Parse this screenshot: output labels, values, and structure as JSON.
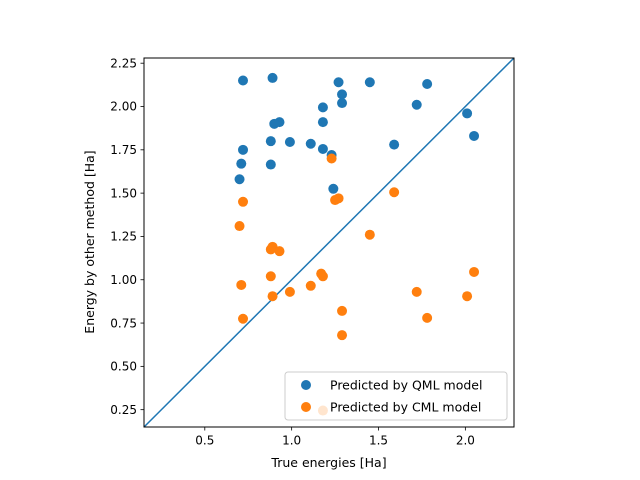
{
  "chart_data": {
    "type": "scatter",
    "xlabel": "True energies [Ha]",
    "ylabel": "Energy by other method [Ha]",
    "xlim": [
      0.15,
      2.28
    ],
    "ylim": [
      0.15,
      2.28
    ],
    "x_ticks": [
      "0.5",
      "1.0",
      "1.5",
      "2.0"
    ],
    "x_tick_values": [
      0.5,
      1.0,
      1.5,
      2.0
    ],
    "y_ticks": [
      "0.25",
      "0.50",
      "0.75",
      "1.00",
      "1.25",
      "1.50",
      "1.75",
      "2.00",
      "2.25"
    ],
    "y_tick_values": [
      0.25,
      0.5,
      0.75,
      1.0,
      1.25,
      1.5,
      1.75,
      2.0,
      2.25
    ],
    "grid": false,
    "legend_position": "lower-right",
    "reference_line": {
      "type": "identity",
      "color": "#1f77b4"
    },
    "series": [
      {
        "name": "Predicted by QML model",
        "color": "#1f77b4",
        "points": [
          [
            0.72,
            2.15
          ],
          [
            0.89,
            2.165
          ],
          [
            1.27,
            2.14
          ],
          [
            1.45,
            2.14
          ],
          [
            1.78,
            2.13
          ],
          [
            1.29,
            2.07
          ],
          [
            1.29,
            2.02
          ],
          [
            1.72,
            2.01
          ],
          [
            1.18,
            1.995
          ],
          [
            2.01,
            1.96
          ],
          [
            0.93,
            1.91
          ],
          [
            0.9,
            1.9
          ],
          [
            1.18,
            1.91
          ],
          [
            2.05,
            1.83
          ],
          [
            0.88,
            1.8
          ],
          [
            0.99,
            1.795
          ],
          [
            1.11,
            1.785
          ],
          [
            1.59,
            1.78
          ],
          [
            1.18,
            1.755
          ],
          [
            0.72,
            1.75
          ],
          [
            1.23,
            1.72
          ],
          [
            0.71,
            1.67
          ],
          [
            0.88,
            1.665
          ],
          [
            0.7,
            1.58
          ],
          [
            1.24,
            1.525
          ]
        ]
      },
      {
        "name": "Predicted by CML model",
        "color": "#ff7f0e",
        "points": [
          [
            1.23,
            1.7
          ],
          [
            1.59,
            1.505
          ],
          [
            1.27,
            1.47
          ],
          [
            1.25,
            1.46
          ],
          [
            0.72,
            1.45
          ],
          [
            0.7,
            1.31
          ],
          [
            1.45,
            1.26
          ],
          [
            0.89,
            1.19
          ],
          [
            0.88,
            1.175
          ],
          [
            0.93,
            1.165
          ],
          [
            0.88,
            1.02
          ],
          [
            1.17,
            1.035
          ],
          [
            1.18,
            1.02
          ],
          [
            2.05,
            1.045
          ],
          [
            0.71,
            0.97
          ],
          [
            1.11,
            0.965
          ],
          [
            0.99,
            0.93
          ],
          [
            1.72,
            0.93
          ],
          [
            0.89,
            0.905
          ],
          [
            2.01,
            0.905
          ],
          [
            1.29,
            0.82
          ],
          [
            0.72,
            0.775
          ],
          [
            1.78,
            0.78
          ],
          [
            1.29,
            0.68
          ],
          [
            1.18,
            0.245
          ]
        ]
      }
    ]
  }
}
